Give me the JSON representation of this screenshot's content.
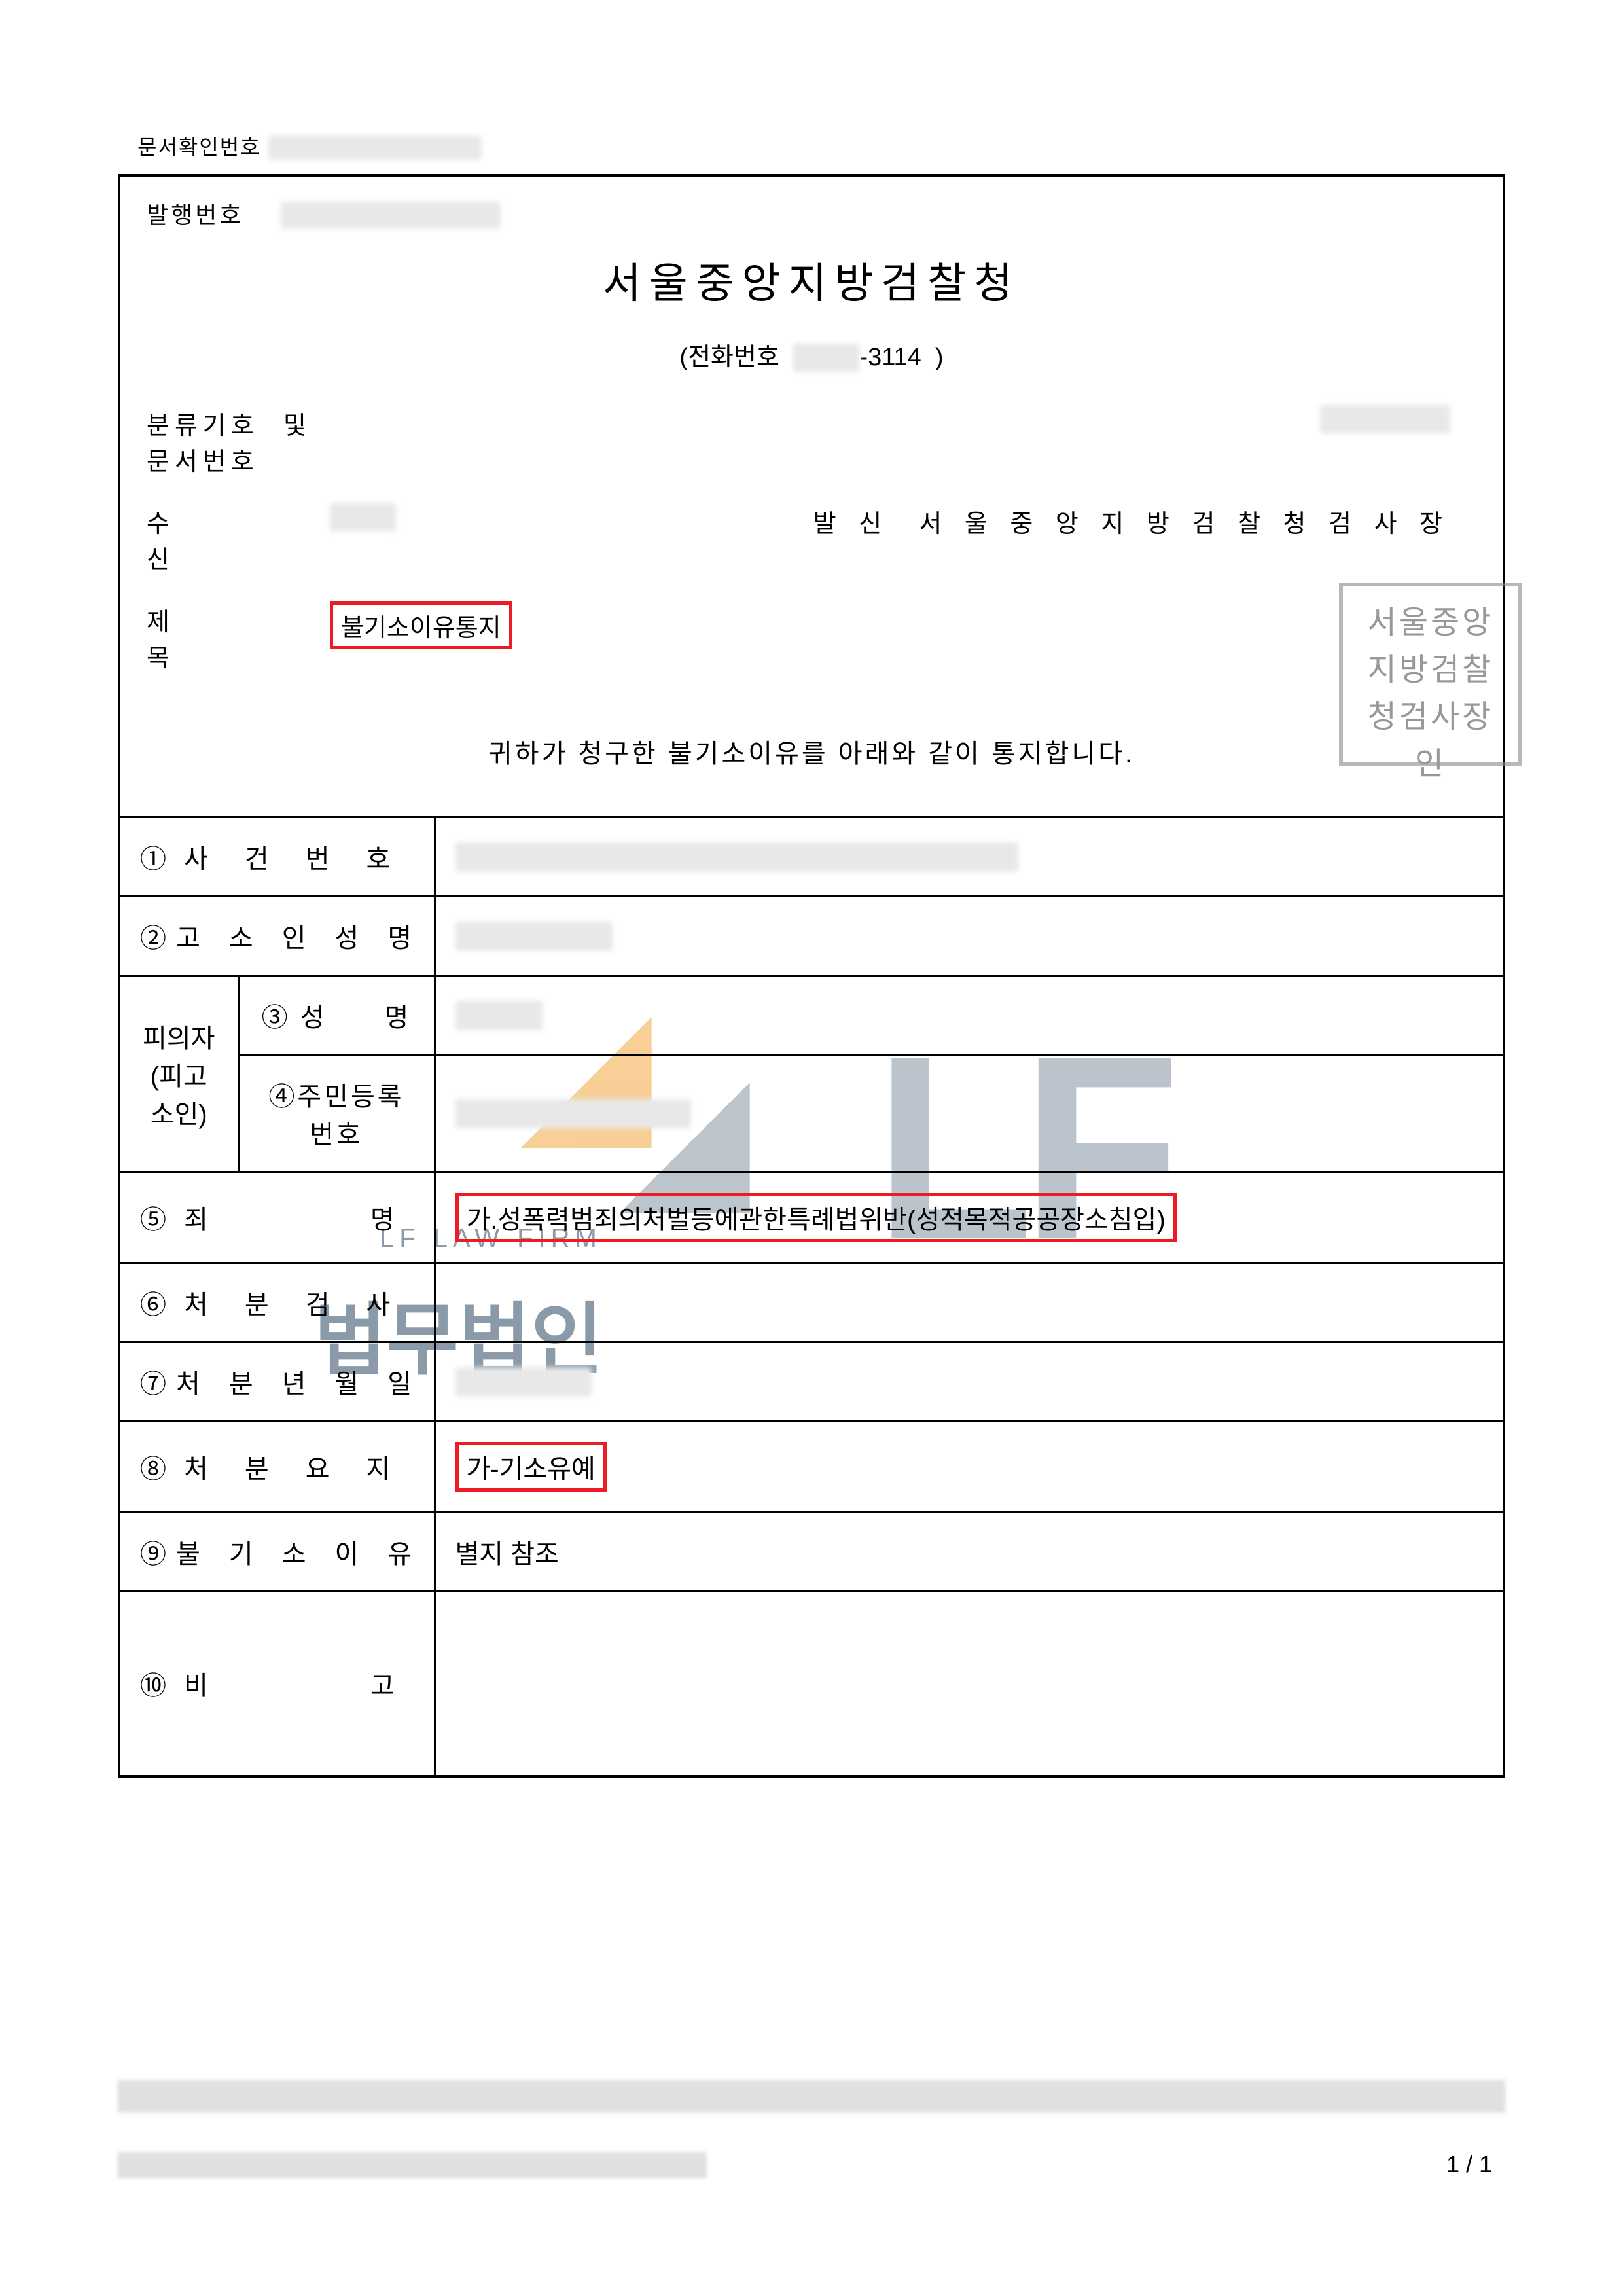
{
  "doc_verify_label": "문서확인번호",
  "issue_label": "발행번호",
  "office_title": "서울중앙지방검찰청",
  "phone_label": "전화번호",
  "phone_suffix": "-3114",
  "classification_label": "분류기호 및\n문서번호",
  "classification_line1": "분류기호",
  "classification_line2": "문서번호",
  "classification_and": "및",
  "recipient_label": "수　　신",
  "sender_label": "발 신",
  "sender_value": "서 울 중 앙 지 방 검 찰 청 검 사 장",
  "subject_label": "제　　목",
  "subject_value": "불기소이유통지",
  "notice_text": "귀하가 청구한 불기소이유를 아래와 같이 통지합니다.",
  "stamp_text": "서울중앙\n지방검찰\n청검사장인",
  "rows": {
    "r1_label": "① 사　건　번　호",
    "r2_label": "② 고　소　인　성　명",
    "suspect_label": "피의자\n(피고소인)",
    "r3_label": "③ 성　　명",
    "r4_label": "④주민등록번호",
    "r5_label": "⑤ 죄　　　　　명",
    "r5_value": "가.성폭력범죄의처벌등에관한특례법위반(성적목적공공장소침입)",
    "r6_label": "⑥ 처　분　검　사",
    "r7_label": "⑦ 처　분　년　월　일",
    "r8_label": "⑧ 처　분　요　지",
    "r8_value": "가-기소유예",
    "r9_label": "⑨ 불　기　소　이　유",
    "r9_value": "별지 참조",
    "r10_label": "⑩ 비　　　　　고"
  },
  "page_number": "1 / 1",
  "colors": {
    "border": "#000000",
    "highlight_box": "#ed1c24",
    "watermark_orange": "#f0a030",
    "watermark_gray": "#7a8a9a",
    "redacted_bg": "#e8e8e8"
  },
  "watermark": {
    "top_text": "LF LAW FIRM",
    "mid_text": "법무법인",
    "lf": "LF"
  }
}
